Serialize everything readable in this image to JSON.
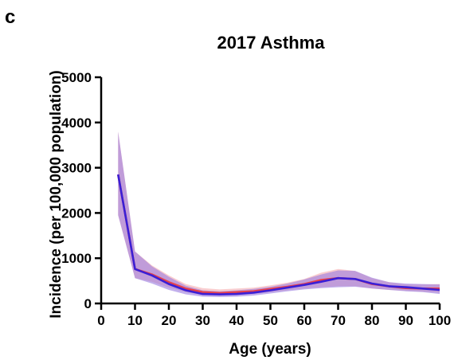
{
  "panel_label": "c",
  "chart_data": {
    "type": "line",
    "title": "2017 Asthma",
    "xlabel": "Age (years)",
    "ylabel": "Incidence (per 100,000 population)",
    "xlim": [
      0,
      100
    ],
    "ylim": [
      0,
      5000
    ],
    "x_ticks": [
      "0",
      "10",
      "20",
      "30",
      "40",
      "50",
      "60",
      "70",
      "80",
      "90",
      "100"
    ],
    "y_ticks": [
      "0",
      "1000",
      "2000",
      "3000",
      "4000",
      "5000"
    ],
    "grid": false,
    "legend": "none",
    "series": [
      {
        "color": "#e8404a",
        "band_color": "#f4a4a8",
        "x": [
          5,
          10,
          15,
          20,
          25,
          30,
          35,
          40,
          45,
          50,
          55,
          60,
          65,
          70,
          75,
          80,
          85,
          90,
          95,
          100
        ],
        "values": [
          2850,
          760,
          640,
          470,
          330,
          250,
          230,
          250,
          270,
          320,
          370,
          430,
          520,
          560,
          540,
          430,
          380,
          340,
          330,
          330
        ],
        "lower": [
          1950,
          560,
          480,
          350,
          250,
          190,
          175,
          190,
          210,
          250,
          290,
          330,
          360,
          380,
          380,
          330,
          300,
          280,
          260,
          240
        ],
        "upper": [
          3800,
          1150,
          840,
          620,
          430,
          340,
          310,
          330,
          350,
          400,
          460,
          540,
          680,
          760,
          720,
          560,
          470,
          420,
          420,
          430
        ]
      },
      {
        "color": "#3a1fd6",
        "band_color": "#9a7be0",
        "x": [
          5,
          10,
          15,
          20,
          25,
          30,
          35,
          40,
          45,
          50,
          55,
          60,
          65,
          70,
          75,
          80,
          85,
          90,
          95,
          100
        ],
        "values": [
          2850,
          760,
          620,
          430,
          290,
          210,
          200,
          210,
          240,
          290,
          350,
          410,
          480,
          560,
          540,
          440,
          380,
          360,
          330,
          300
        ],
        "lower": [
          1950,
          560,
          440,
          300,
          200,
          150,
          140,
          150,
          175,
          220,
          270,
          310,
          340,
          360,
          370,
          330,
          300,
          270,
          250,
          210
        ],
        "upper": [
          3800,
          1150,
          820,
          590,
          390,
          290,
          270,
          290,
          320,
          370,
          440,
          530,
          640,
          730,
          720,
          570,
          470,
          440,
          430,
          420
        ]
      }
    ]
  }
}
